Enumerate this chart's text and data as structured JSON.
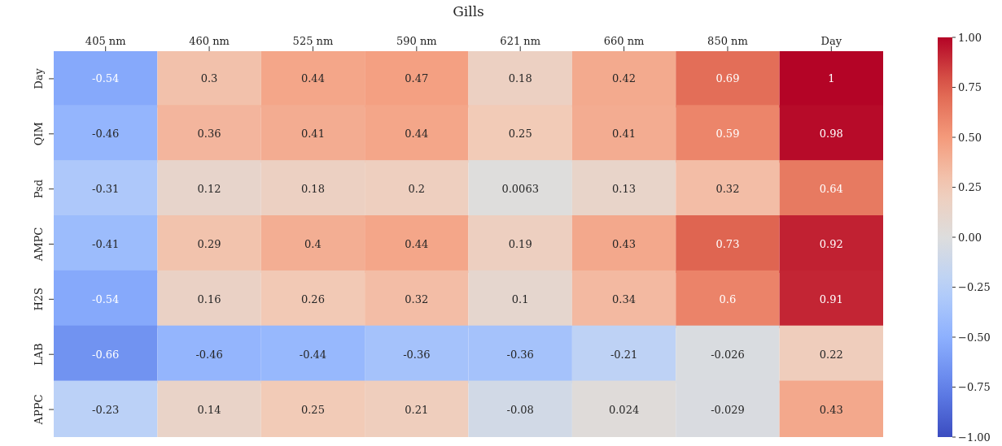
{
  "chart_data": {
    "type": "heatmap",
    "title": "Gills",
    "categories": [
      "405 nm",
      "460 nm",
      "525 nm",
      "590 nm",
      "621 nm",
      "660 nm",
      "850 nm",
      "Day"
    ],
    "y_categories": [
      "Day",
      "QIM",
      "Psd",
      "AMPC",
      "H2S",
      "LAB",
      "APPC"
    ],
    "cells": [
      [
        -0.54,
        0.3,
        0.44,
        0.47,
        0.18,
        0.42,
        0.69,
        1
      ],
      [
        -0.46,
        0.36,
        0.41,
        0.44,
        0.25,
        0.41,
        0.59,
        0.98
      ],
      [
        -0.31,
        0.12,
        0.18,
        0.2,
        0.0063,
        0.13,
        0.32,
        0.64
      ],
      [
        -0.41,
        0.29,
        0.4,
        0.44,
        0.19,
        0.43,
        0.73,
        0.92
      ],
      [
        -0.54,
        0.16,
        0.26,
        0.32,
        0.1,
        0.34,
        0.6,
        0.91
      ],
      [
        -0.66,
        -0.46,
        -0.44,
        -0.36,
        -0.36,
        -0.21,
        -0.026,
        0.22
      ],
      [
        -0.23,
        0.14,
        0.25,
        0.21,
        -0.08,
        0.024,
        -0.029,
        0.43
      ]
    ],
    "data_labels": true,
    "clim": [
      -1,
      1
    ],
    "cticks": [
      {
        "value": -1,
        "label": "−1.00"
      },
      {
        "value": -0.75,
        "label": "−0.75"
      },
      {
        "value": -0.5,
        "label": "−0.50"
      },
      {
        "value": -0.25,
        "label": "−0.25"
      },
      {
        "value": 0,
        "label": "0.00"
      },
      {
        "value": 0.25,
        "label": "0.25"
      },
      {
        "value": 0.5,
        "label": "0.50"
      },
      {
        "value": 0.75,
        "label": "0.75"
      },
      {
        "value": 1,
        "label": "1.00"
      }
    ]
  }
}
